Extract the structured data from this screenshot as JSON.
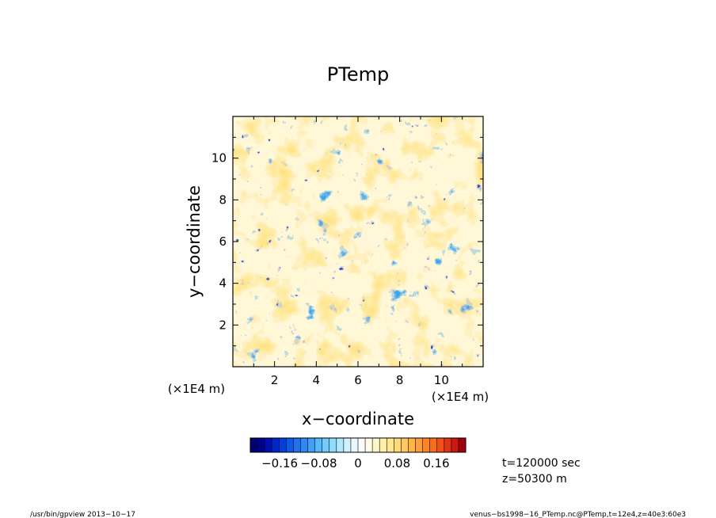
{
  "chart_data": {
    "type": "heatmap",
    "title": "PTemp",
    "xlabel": "x−coordinate",
    "ylabel": "y−coordinate",
    "x_unit": "(×1E4 m)",
    "y_unit": "(×1E4 m)",
    "xlim": [
      0,
      12
    ],
    "ylim": [
      0,
      12
    ],
    "x_ticks": [
      2,
      4,
      6,
      8,
      10
    ],
    "y_ticks": [
      2,
      4,
      6,
      8,
      10
    ],
    "x_tick_labels": [
      "2",
      "4",
      "6",
      "8",
      "10"
    ],
    "y_tick_labels": [
      "2",
      "4",
      "6",
      "8",
      "10"
    ],
    "colorbar": {
      "range": [
        -0.22,
        0.22
      ],
      "tick_values": [
        -0.16,
        -0.08,
        0,
        0.08,
        0.16
      ],
      "tick_labels": [
        "−0.16",
        "−0.08",
        "0",
        "0.08",
        "0.16"
      ],
      "colors": [
        "#000070",
        "#00008f",
        "#0010b0",
        "#0028c8",
        "#0040dc",
        "#1058e8",
        "#2070f0",
        "#3088f5",
        "#40a0f8",
        "#58b8fa",
        "#70ccfc",
        "#90dcfd",
        "#b0e8fe",
        "#d0f2fe",
        "#e8f8fe",
        "#fbfdfc",
        "#fffce8",
        "#fff6c8",
        "#fff0a8",
        "#ffe690",
        "#ffd878",
        "#ffc860",
        "#ffb448",
        "#ff9e38",
        "#ff8628",
        "#f86c20",
        "#f0501a",
        "#e03414",
        "#c81a10",
        "#a0000c"
      ]
    },
    "grid": false
  },
  "annotations": {
    "time": "t=120000 sec",
    "height": "z=50300 m"
  },
  "footer": {
    "left": "/usr/bin/gpview  2013−10−17",
    "right": "venus−bs1998−16_PTemp.nc@PTemp,t=12e4,z=40e3:60e3"
  }
}
